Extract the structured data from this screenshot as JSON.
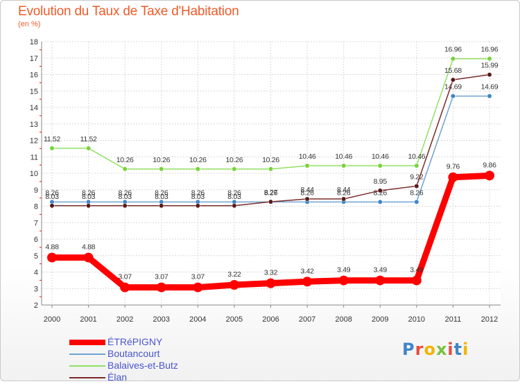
{
  "header": {
    "title": "Evolution du Taux de Taxe d'Habitation",
    "subtitle": "(en %)"
  },
  "logo": {
    "text": "Proxiti"
  },
  "chart_data": {
    "type": "line",
    "title": "Evolution du Taux de Taxe d'Habitation",
    "subtitle": "(en %)",
    "x": [
      "2000",
      "2001",
      "2002",
      "2003",
      "2004",
      "2005",
      "2006",
      "2007",
      "2008",
      "2009",
      "2010",
      "2011",
      "2012"
    ],
    "ylim": [
      2,
      18
    ],
    "yticks": [
      2,
      3,
      4,
      5,
      6,
      7,
      8,
      9,
      10,
      11,
      12,
      13,
      14,
      15,
      16,
      17,
      18
    ],
    "grid": true,
    "legend": "bottom-left",
    "series": [
      {
        "name": "ÉTRéPIGNY",
        "color": "#ff0000",
        "values": [
          4.88,
          4.88,
          3.07,
          3.07,
          3.07,
          3.22,
          3.32,
          3.42,
          3.49,
          3.49,
          3.49,
          9.76,
          9.86
        ],
        "labels": [
          "4.88",
          "4.88",
          "3.07",
          "3.07",
          "3.07",
          "3.22",
          "3.32",
          "3.42",
          "3.49",
          "3.49",
          "3.49",
          "9.76",
          "9.86"
        ]
      },
      {
        "name": "Boutancourt",
        "color": "#6fa3d0",
        "values": [
          8.26,
          8.26,
          8.26,
          8.26,
          8.26,
          8.26,
          8.26,
          8.26,
          8.26,
          8.26,
          8.26,
          14.69,
          14.69
        ],
        "labels": [
          "8.26",
          "8.26",
          "8.26",
          "8.26",
          "8.26",
          "8.26",
          "8.26",
          "8.26",
          "8.26",
          "8.26",
          "8.26",
          "14.69",
          "14.69"
        ]
      },
      {
        "name": "Balaives-et-Butz",
        "color": "#90e060",
        "values": [
          11.52,
          11.52,
          10.26,
          10.26,
          10.26,
          10.26,
          10.26,
          10.46,
          10.46,
          10.46,
          10.46,
          16.96,
          16.96
        ],
        "labels": [
          "11.52",
          "11.52",
          "10.26",
          "10.26",
          "10.26",
          "10.26",
          "10.26",
          "10.46",
          "10.46",
          "10.46",
          "10.46",
          "16.96",
          "16.96"
        ]
      },
      {
        "name": "Élan",
        "color": "#7a2a2a",
        "values": [
          8.03,
          8.03,
          8.03,
          8.03,
          8.03,
          8.03,
          8.27,
          8.44,
          8.44,
          8.95,
          9.22,
          15.68,
          15.99
        ],
        "labels": [
          "8.03",
          "8.03",
          "8.03",
          "8.03",
          "8.03",
          "8.03",
          "8.27",
          "8.44",
          "8.44",
          "8.95",
          "9.22",
          "15.68",
          "15.99"
        ]
      }
    ]
  }
}
